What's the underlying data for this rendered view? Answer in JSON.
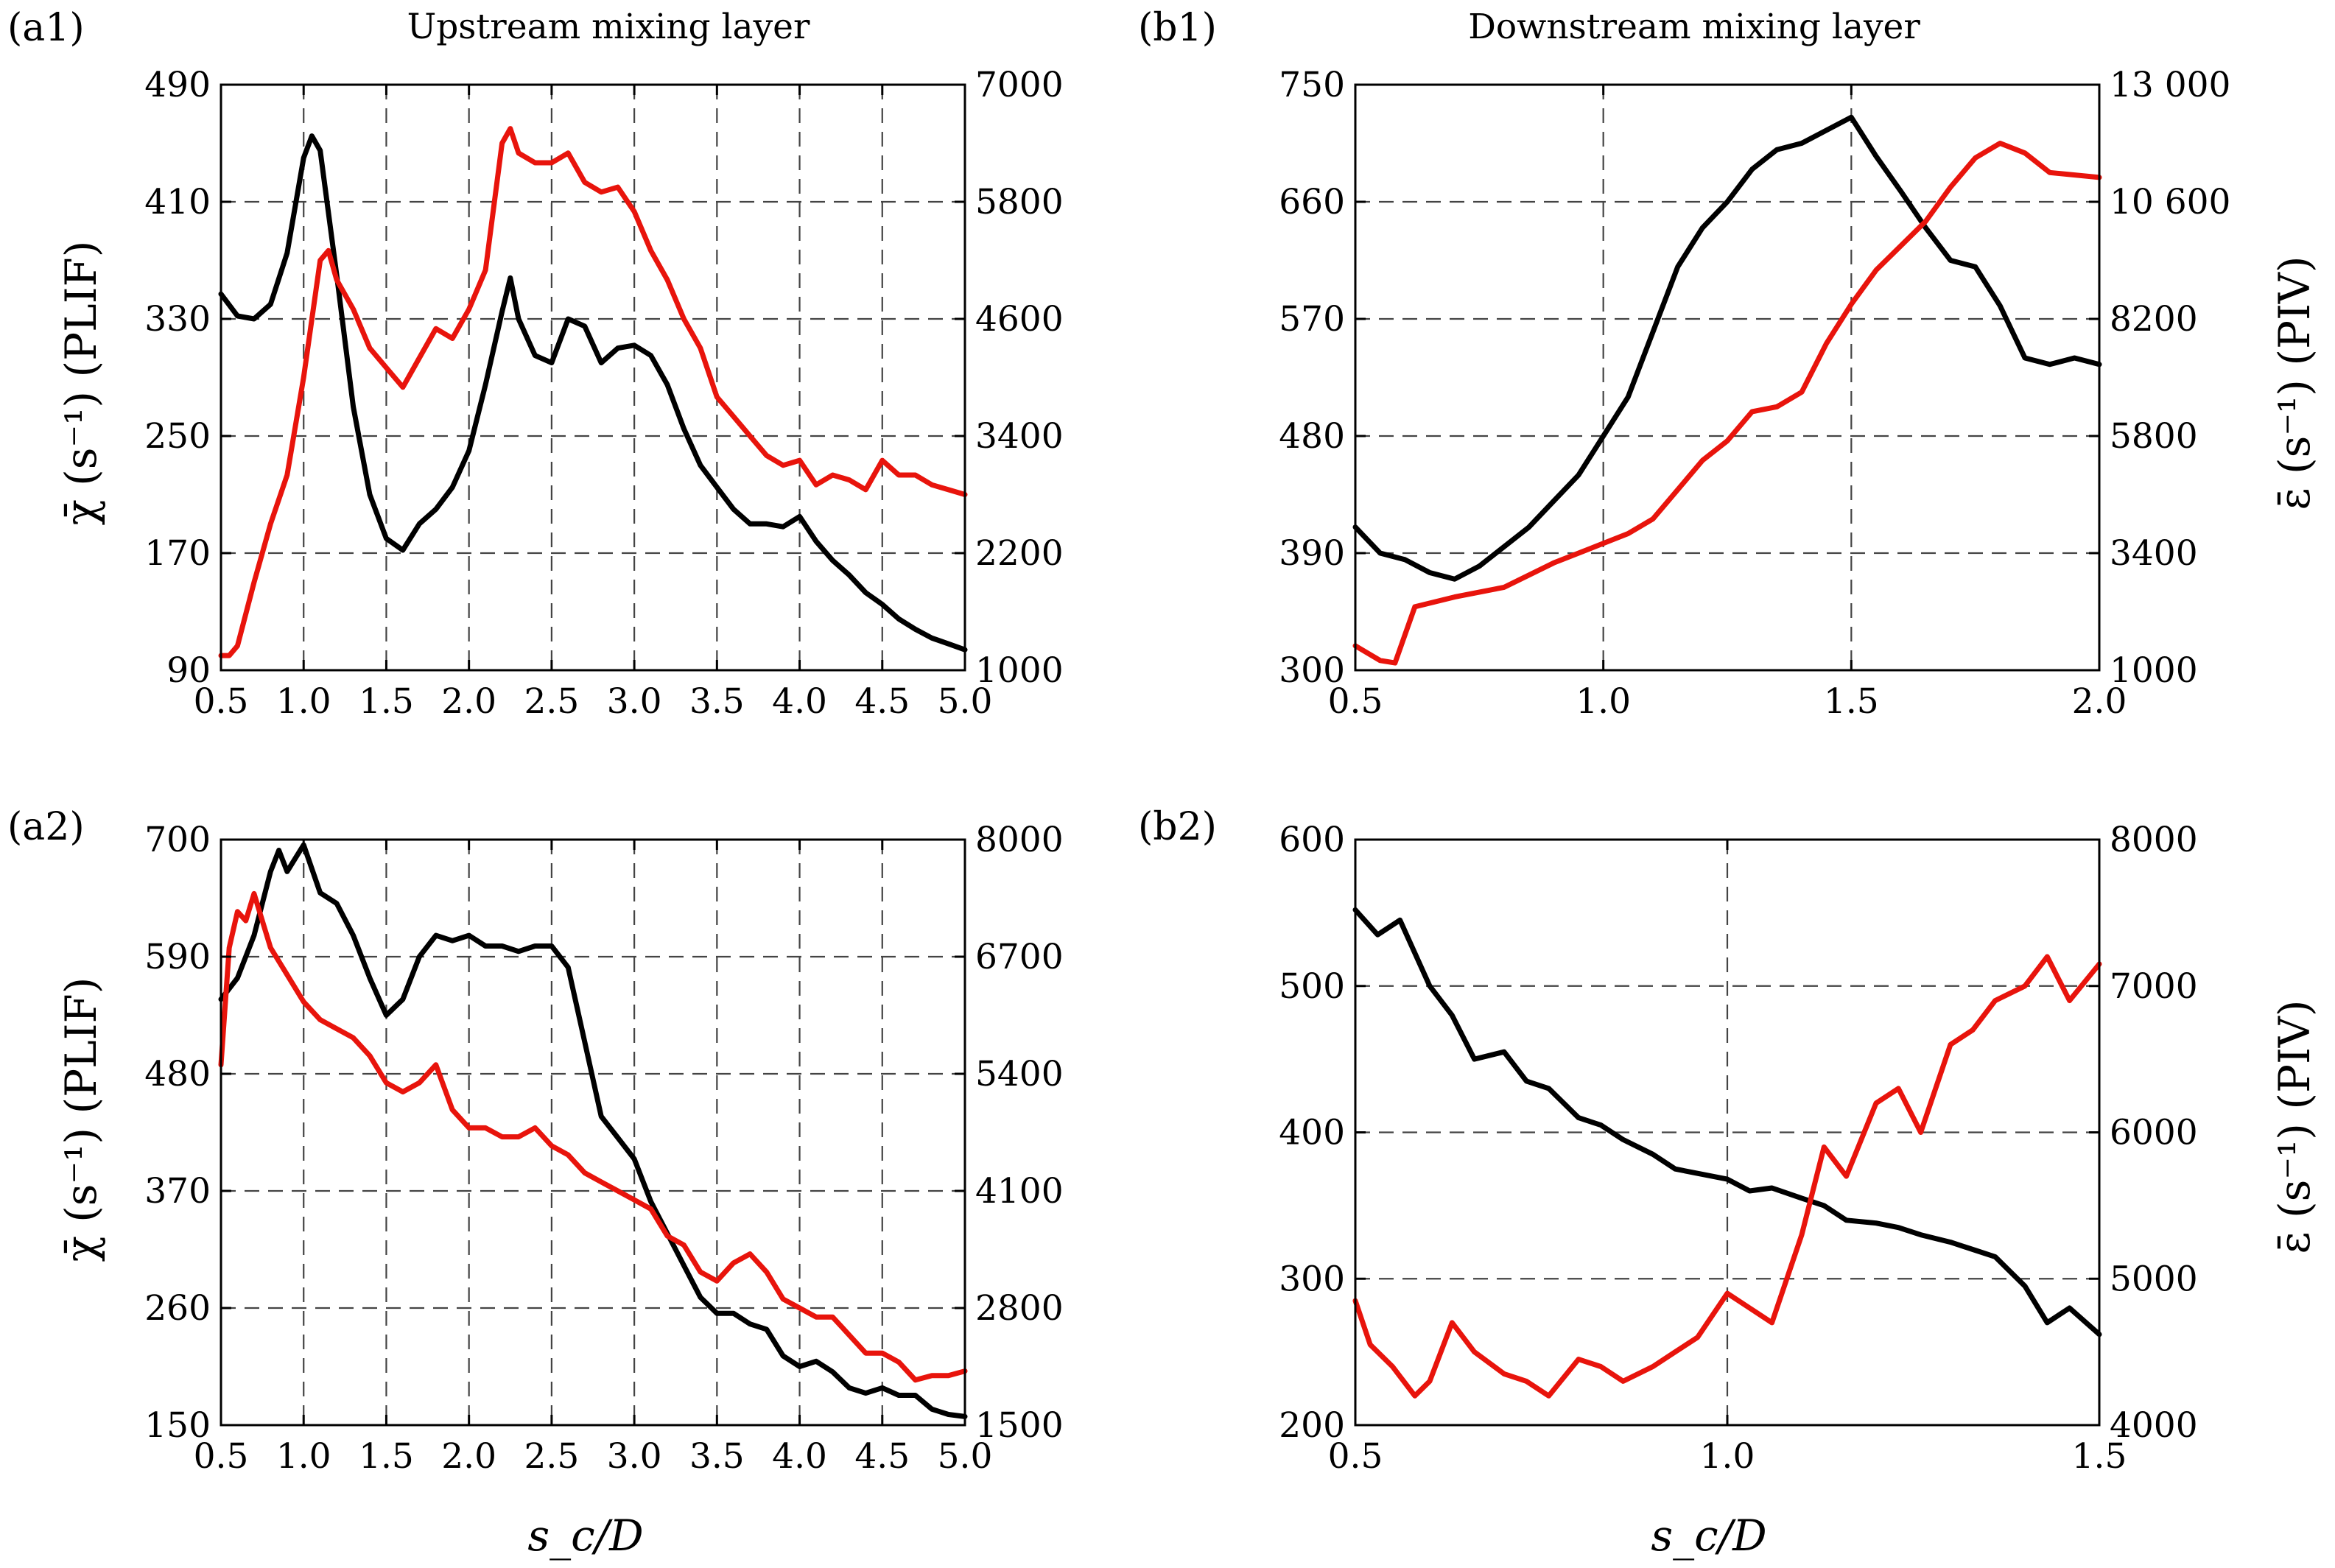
{
  "figure": {
    "x_axis_label": "s_c/D",
    "left_axis_label": "χ̄ (s⁻¹) (PLIF)",
    "right_axis_label": "ε̄ (s⁻¹) (PIV)"
  },
  "chart_data": [
    {
      "id": "a1",
      "type": "line",
      "panel_label": "(a1)",
      "title": "Upstream mixing layer",
      "xlim": [
        0.5,
        5.0
      ],
      "ylim_left": [
        90,
        490
      ],
      "ylim_right": [
        1000,
        7000
      ],
      "x_ticks": [
        0.5,
        1.0,
        1.5,
        2.0,
        2.5,
        3.0,
        3.5,
        4.0,
        4.5,
        5.0
      ],
      "x_tick_labels": [
        "0.5",
        "1.0",
        "1.5",
        "2.0",
        "2.5",
        "3.0",
        "3.5",
        "4.0",
        "4.5",
        "5.0"
      ],
      "y_left_ticks": [
        90,
        170,
        250,
        330,
        410,
        490
      ],
      "y_left_tick_labels": [
        "90",
        "170",
        "250",
        "330",
        "410",
        "490"
      ],
      "y_right_ticks": [
        1000,
        2200,
        3400,
        4600,
        5800,
        7000
      ],
      "y_right_tick_labels": [
        "1000",
        "2200",
        "3400",
        "4600",
        "5800",
        "7000"
      ],
      "series": [
        {
          "name": "χ̄ (PLIF)",
          "axis": "left",
          "color": "#000000",
          "x": [
            0.5,
            0.6,
            0.7,
            0.8,
            0.9,
            1.0,
            1.05,
            1.1,
            1.2,
            1.3,
            1.4,
            1.5,
            1.6,
            1.7,
            1.8,
            1.9,
            2.0,
            2.1,
            2.2,
            2.25,
            2.3,
            2.4,
            2.5,
            2.6,
            2.7,
            2.8,
            2.9,
            3.0,
            3.1,
            3.2,
            3.3,
            3.4,
            3.5,
            3.6,
            3.7,
            3.8,
            3.9,
            4.0,
            4.1,
            4.2,
            4.3,
            4.4,
            4.5,
            4.6,
            4.7,
            4.8,
            4.9,
            5.0
          ],
          "values": [
            347,
            332,
            330,
            340,
            375,
            440,
            455,
            445,
            360,
            270,
            210,
            180,
            172,
            190,
            200,
            215,
            240,
            285,
            335,
            358,
            330,
            305,
            300,
            330,
            325,
            300,
            310,
            312,
            305,
            285,
            255,
            230,
            215,
            200,
            190,
            190,
            188,
            195,
            178,
            165,
            155,
            143,
            135,
            125,
            118,
            112,
            108,
            104
          ]
        },
        {
          "name": "ε̄ (PIV)",
          "axis": "right",
          "color": "#e8140c",
          "x": [
            0.5,
            0.55,
            0.6,
            0.7,
            0.8,
            0.9,
            1.0,
            1.1,
            1.15,
            1.2,
            1.3,
            1.4,
            1.5,
            1.6,
            1.7,
            1.8,
            1.9,
            2.0,
            2.1,
            2.2,
            2.25,
            2.3,
            2.4,
            2.5,
            2.6,
            2.7,
            2.8,
            2.9,
            3.0,
            3.1,
            3.2,
            3.3,
            3.4,
            3.5,
            3.6,
            3.7,
            3.8,
            3.9,
            4.0,
            4.1,
            4.2,
            4.3,
            4.4,
            4.5,
            4.6,
            4.7,
            4.8,
            4.9,
            5.0
          ],
          "values": [
            1150,
            1150,
            1250,
            1900,
            2500,
            3000,
            4000,
            5200,
            5300,
            5000,
            4700,
            4300,
            4100,
            3900,
            4200,
            4500,
            4400,
            4700,
            5100,
            6400,
            6550,
            6300,
            6200,
            6200,
            6300,
            6000,
            5900,
            5950,
            5700,
            5300,
            5000,
            4600,
            4300,
            3800,
            3600,
            3400,
            3200,
            3100,
            3150,
            2900,
            3000,
            2950,
            2850,
            3150,
            3000,
            3000,
            2900,
            2850,
            2800
          ]
        }
      ]
    },
    {
      "id": "b1",
      "type": "line",
      "panel_label": "(b1)",
      "title": "Downstream mixing layer",
      "xlim": [
        0.5,
        2.0
      ],
      "ylim_left": [
        300,
        750
      ],
      "ylim_right": [
        1000,
        13000
      ],
      "x_ticks": [
        0.5,
        1.0,
        1.5,
        2.0
      ],
      "x_tick_labels": [
        "0.5",
        "1.0",
        "1.5",
        "2.0"
      ],
      "y_left_ticks": [
        300,
        390,
        480,
        570,
        660,
        750
      ],
      "y_left_tick_labels": [
        "300",
        "390",
        "480",
        "570",
        "660",
        "750"
      ],
      "y_right_ticks": [
        1000,
        3400,
        5800,
        8200,
        10600,
        13000
      ],
      "y_right_tick_labels": [
        "1000",
        "3400",
        "5800",
        "8200",
        "10 600",
        "13 000"
      ],
      "series": [
        {
          "name": "χ̄ (PLIF)",
          "axis": "left",
          "color": "#000000",
          "x": [
            0.5,
            0.55,
            0.6,
            0.65,
            0.7,
            0.75,
            0.8,
            0.85,
            0.9,
            0.95,
            1.0,
            1.05,
            1.1,
            1.15,
            1.2,
            1.25,
            1.3,
            1.35,
            1.4,
            1.45,
            1.5,
            1.55,
            1.6,
            1.65,
            1.7,
            1.75,
            1.8,
            1.85,
            1.9,
            1.95,
            2.0
          ],
          "values": [
            410,
            390,
            385,
            375,
            370,
            380,
            395,
            410,
            430,
            450,
            480,
            510,
            560,
            610,
            640,
            660,
            685,
            700,
            705,
            715,
            725,
            695,
            668,
            640,
            615,
            610,
            580,
            540,
            535,
            540,
            535
          ]
        },
        {
          "name": "ε̄ (PIV)",
          "axis": "right",
          "color": "#e8140c",
          "x": [
            0.5,
            0.55,
            0.58,
            0.62,
            0.7,
            0.8,
            0.9,
            1.0,
            1.05,
            1.1,
            1.15,
            1.2,
            1.25,
            1.3,
            1.35,
            1.4,
            1.45,
            1.5,
            1.55,
            1.6,
            1.65,
            1.7,
            1.75,
            1.8,
            1.85,
            1.9,
            2.0
          ],
          "values": [
            1500,
            1200,
            1150,
            2300,
            2500,
            2700,
            3200,
            3600,
            3800,
            4100,
            4700,
            5300,
            5700,
            6300,
            6400,
            6700,
            7700,
            8500,
            9200,
            9700,
            10200,
            10900,
            11500,
            11800,
            11600,
            11200,
            11100
          ]
        }
      ]
    },
    {
      "id": "a2",
      "type": "line",
      "panel_label": "(a2)",
      "title": "",
      "xlim": [
        0.5,
        5.0
      ],
      "ylim_left": [
        150,
        700
      ],
      "ylim_right": [
        1500,
        8000
      ],
      "x_ticks": [
        0.5,
        1.0,
        1.5,
        2.0,
        2.5,
        3.0,
        3.5,
        4.0,
        4.5,
        5.0
      ],
      "x_tick_labels": [
        "0.5",
        "1.0",
        "1.5",
        "2.0",
        "2.5",
        "3.0",
        "3.5",
        "4.0",
        "4.5",
        "5.0"
      ],
      "y_left_ticks": [
        150,
        260,
        370,
        480,
        590,
        700
      ],
      "y_left_tick_labels": [
        "150",
        "260",
        "370",
        "480",
        "590",
        "700"
      ],
      "y_right_ticks": [
        1500,
        2800,
        4100,
        5400,
        6700,
        8000
      ],
      "y_right_tick_labels": [
        "1500",
        "2800",
        "4100",
        "5400",
        "6700",
        "8000"
      ],
      "series": [
        {
          "name": "χ̄ (PLIF)",
          "axis": "left",
          "color": "#000000",
          "x": [
            0.5,
            0.6,
            0.7,
            0.8,
            0.85,
            0.9,
            1.0,
            1.1,
            1.2,
            1.3,
            1.4,
            1.5,
            1.6,
            1.7,
            1.8,
            1.9,
            2.0,
            2.1,
            2.2,
            2.3,
            2.4,
            2.5,
            2.6,
            2.7,
            2.8,
            2.9,
            3.0,
            3.1,
            3.2,
            3.3,
            3.4,
            3.5,
            3.6,
            3.7,
            3.8,
            3.9,
            4.0,
            4.1,
            4.2,
            4.3,
            4.4,
            4.5,
            4.6,
            4.7,
            4.8,
            4.9,
            5.0
          ],
          "values": [
            550,
            570,
            610,
            670,
            690,
            670,
            695,
            650,
            640,
            610,
            570,
            535,
            550,
            590,
            610,
            605,
            610,
            600,
            600,
            595,
            600,
            600,
            580,
            510,
            440,
            420,
            400,
            360,
            330,
            300,
            270,
            255,
            255,
            245,
            240,
            215,
            205,
            210,
            200,
            185,
            180,
            185,
            178,
            178,
            165,
            160,
            158
          ]
        },
        {
          "name": "ε̄ (PIV)",
          "axis": "right",
          "color": "#e8140c",
          "x": [
            0.5,
            0.55,
            0.6,
            0.65,
            0.7,
            0.8,
            0.9,
            1.0,
            1.1,
            1.2,
            1.3,
            1.4,
            1.5,
            1.6,
            1.7,
            1.8,
            1.9,
            2.0,
            2.1,
            2.2,
            2.3,
            2.4,
            2.5,
            2.6,
            2.7,
            2.8,
            2.9,
            3.0,
            3.1,
            3.2,
            3.3,
            3.4,
            3.5,
            3.6,
            3.7,
            3.8,
            3.9,
            4.0,
            4.1,
            4.2,
            4.3,
            4.4,
            4.5,
            4.6,
            4.7,
            4.8,
            4.9,
            5.0
          ],
          "values": [
            5500,
            6800,
            7200,
            7100,
            7400,
            6800,
            6500,
            6200,
            6000,
            5900,
            5800,
            5600,
            5300,
            5200,
            5300,
            5500,
            5000,
            4800,
            4800,
            4700,
            4700,
            4800,
            4600,
            4500,
            4300,
            4200,
            4100,
            4000,
            3900,
            3600,
            3500,
            3200,
            3100,
            3300,
            3400,
            3200,
            2900,
            2800,
            2700,
            2700,
            2500,
            2300,
            2300,
            2200,
            2000,
            2050,
            2050,
            2100
          ]
        }
      ]
    },
    {
      "id": "b2",
      "type": "line",
      "panel_label": "(b2)",
      "title": "",
      "xlim": [
        0.5,
        1.5
      ],
      "ylim_left": [
        200,
        600
      ],
      "ylim_right": [
        4000,
        8000
      ],
      "x_ticks": [
        0.5,
        1.0,
        1.5
      ],
      "x_tick_labels": [
        "0.5",
        "1.0",
        "1.5"
      ],
      "y_left_ticks": [
        200,
        300,
        400,
        500,
        600
      ],
      "y_left_tick_labels": [
        "200",
        "300",
        "400",
        "500",
        "600"
      ],
      "y_right_ticks": [
        4000,
        5000,
        6000,
        7000,
        8000
      ],
      "y_right_tick_labels": [
        "4000",
        "5000",
        "6000",
        "7000",
        "8000"
      ],
      "series": [
        {
          "name": "χ̄ (PLIF)",
          "axis": "left",
          "color": "#000000",
          "x": [
            0.5,
            0.53,
            0.56,
            0.6,
            0.63,
            0.66,
            0.7,
            0.73,
            0.76,
            0.8,
            0.83,
            0.86,
            0.9,
            0.93,
            0.96,
            1.0,
            1.03,
            1.06,
            1.1,
            1.13,
            1.16,
            1.2,
            1.23,
            1.26,
            1.3,
            1.33,
            1.36,
            1.4,
            1.43,
            1.46,
            1.5
          ],
          "values": [
            552,
            535,
            545,
            500,
            480,
            450,
            455,
            435,
            430,
            410,
            405,
            395,
            385,
            375,
            372,
            368,
            360,
            362,
            355,
            350,
            340,
            338,
            335,
            330,
            325,
            320,
            315,
            295,
            270,
            280,
            262
          ]
        },
        {
          "name": "ε̄ (PIV)",
          "axis": "right",
          "color": "#e8140c",
          "x": [
            0.5,
            0.52,
            0.55,
            0.58,
            0.6,
            0.63,
            0.66,
            0.7,
            0.73,
            0.76,
            0.8,
            0.83,
            0.86,
            0.9,
            0.93,
            0.96,
            1.0,
            1.03,
            1.06,
            1.1,
            1.13,
            1.16,
            1.2,
            1.23,
            1.26,
            1.3,
            1.33,
            1.36,
            1.4,
            1.43,
            1.46,
            1.5
          ],
          "values": [
            4850,
            4550,
            4400,
            4200,
            4300,
            4700,
            4500,
            4350,
            4300,
            4200,
            4450,
            4400,
            4300,
            4400,
            4500,
            4600,
            4900,
            4800,
            4700,
            5300,
            5900,
            5700,
            6200,
            6300,
            6000,
            6600,
            6700,
            6900,
            7000,
            7200,
            6900,
            7150
          ]
        }
      ]
    }
  ]
}
